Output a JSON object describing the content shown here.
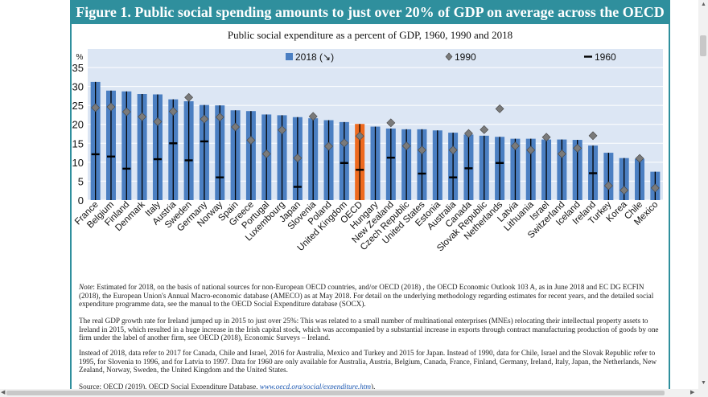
{
  "figure_title": "Figure 1. Public social spending amounts to just over 20% of GDP on average across the OECD",
  "chart_data": {
    "type": "bar",
    "title": "Public social expenditure as a percent of GDP, 1960, 1990 and 2018",
    "ylabel": "%",
    "ylim": [
      0,
      35
    ],
    "yticks": [
      0,
      5,
      10,
      15,
      20,
      25,
      30,
      35
    ],
    "legend": [
      "2018 (↘)",
      "1990",
      "1960"
    ],
    "highlight": "OECD",
    "colors": {
      "bar": "#4b7fc2",
      "highlight": "#ee6a1f",
      "band": "#dce6f4",
      "marker": "#7a7a7a",
      "line": "#000000"
    },
    "categories": [
      "France",
      "Belgium",
      "Finland",
      "Denmark",
      "Italy",
      "Austria",
      "Sweden",
      "Germany",
      "Norway",
      "Spain",
      "Greece",
      "Portugal",
      "Luxembourg",
      "Japan",
      "Slovenia",
      "Poland",
      "United Kingdom",
      "OECD",
      "Hungary",
      "New Zealand",
      "Czech Republic",
      "United States",
      "Estonia",
      "Australia",
      "Canada",
      "Slovak Republic",
      "Netherlands",
      "Latvia",
      "Lithuania",
      "Israel",
      "Switzerland",
      "Iceland",
      "Ireland",
      "Turkey",
      "Korea",
      "Chile",
      "Mexico"
    ],
    "series": [
      {
        "name": "2018",
        "values": [
          31.2,
          28.9,
          28.7,
          28.0,
          27.9,
          26.6,
          26.1,
          25.1,
          25.0,
          23.7,
          23.5,
          22.6,
          22.4,
          21.9,
          21.6,
          21.1,
          20.6,
          20.1,
          19.4,
          18.9,
          18.7,
          18.7,
          18.4,
          17.8,
          17.3,
          17.0,
          16.7,
          16.2,
          16.2,
          16.0,
          16.0,
          15.9,
          14.4,
          12.5,
          11.1,
          10.9,
          7.5
        ]
      },
      {
        "name": "1990",
        "values": [
          24.4,
          24.6,
          23.3,
          22.0,
          20.7,
          23.4,
          27.1,
          21.4,
          21.9,
          19.3,
          15.8,
          12.2,
          18.5,
          11.1,
          22.1,
          14.2,
          15.1,
          16.9,
          null,
          20.4,
          14.3,
          13.2,
          null,
          13.2,
          17.6,
          18.6,
          24.1,
          14.3,
          13.2,
          16.6,
          12.2,
          13.7,
          17.0,
          3.8,
          2.6,
          11.0,
          3.2
        ]
      },
      {
        "name": "1960",
        "values": [
          12.1,
          11.5,
          8.3,
          null,
          10.8,
          15.0,
          10.5,
          15.5,
          6.0,
          null,
          null,
          null,
          null,
          3.5,
          null,
          null,
          9.8,
          8.0,
          null,
          11.2,
          null,
          7.0,
          null,
          6.0,
          8.4,
          null,
          9.8,
          null,
          null,
          null,
          null,
          null,
          7.1,
          null,
          null,
          null,
          null
        ]
      }
    ]
  },
  "notes": {
    "note_label": "Note",
    "note_text": ": Estimated for 2018, on the basis of national sources for non-European OECD countries, and/or OECD (2018) , the OECD Economic Outlook 103 A, as in June 2018 and EC DG ECFIN (2018), the European Union's Annual Macro-economic database (AMECO) as at May 2018. For detail on the underlying methodology regarding estimates for recent years, and the detailed social expenditure programme data, see the manual to the OECD Social Expenditure database (SOCX).",
    "para2": "The real GDP growth rate for Ireland jumped up in 2015 to just over 25%: This was related to a small number of multinational enterprises (MNEs) relocating their intellectual property assets to Ireland in 2015, which resulted in a huge increase in the Irish capital stock, which was accompanied by a substantial increase in exports through contract manufacturing production of goods by one firm under the label of another firm, see OECD (2018), Economic Surveys – Ireland.",
    "para3": "Instead of 2018, data refer to 2017 for Canada, Chile and Israel, 2016 for Australia, Mexico and Turkey and 2015 for Japan. Instead of 1990, data for Chile, Israel and the Slovak Republic refer to 1995, for Slovenia to 1996, and for Latvia to 1997. Data for 1960 are only available for Australia, Austria, Belgium, Canada, France, Finland, Germany, Ireland, Italy, Japan, the Netherlands, New Zealand, Norway, Sweden, the United Kingdom and the United States.",
    "source_text": "Source: OECD (2019), OECD Social Expenditure Database,",
    "source_link": "www.oecd.org/social/expenditure.htm",
    "source_end": ")."
  }
}
